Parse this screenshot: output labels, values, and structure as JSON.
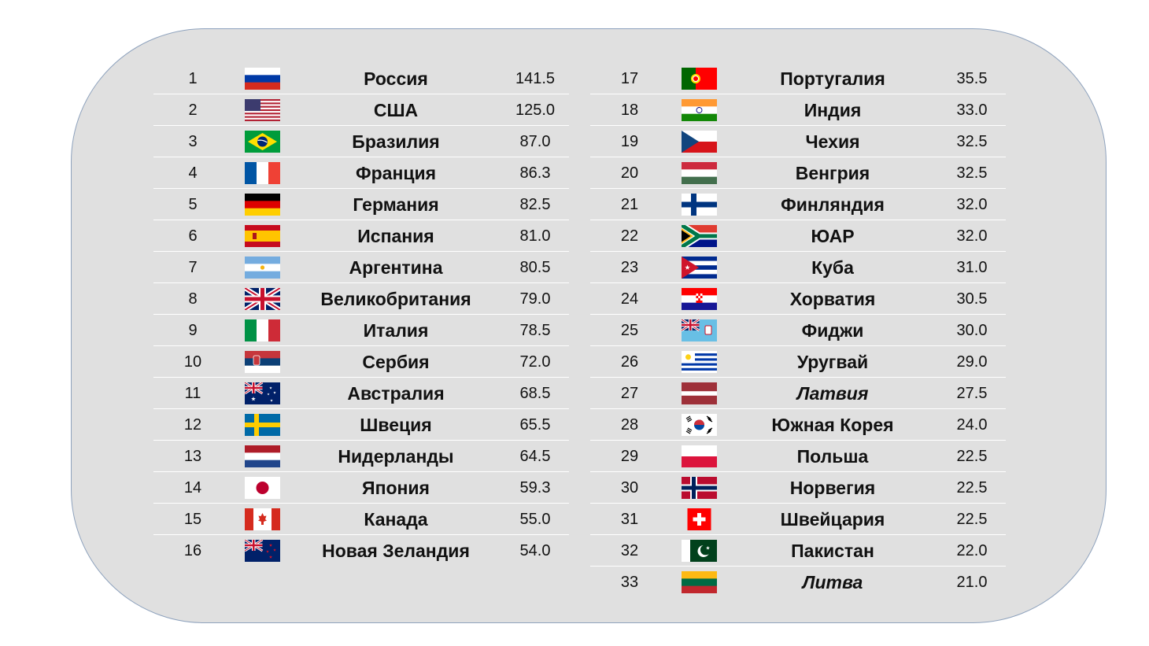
{
  "left": [
    {
      "rank": "1",
      "flag": "russia-flag",
      "name": "Россия",
      "value": "141.5"
    },
    {
      "rank": "2",
      "flag": "usa-flag",
      "name": "США",
      "value": "125.0"
    },
    {
      "rank": "3",
      "flag": "brazil-flag",
      "name": "Бразилия",
      "value": "87.0"
    },
    {
      "rank": "4",
      "flag": "france-flag",
      "name": "Франция",
      "value": "86.3"
    },
    {
      "rank": "5",
      "flag": "germany-flag",
      "name": "Германия",
      "value": "82.5"
    },
    {
      "rank": "6",
      "flag": "spain-flag",
      "name": "Испания",
      "value": "81.0"
    },
    {
      "rank": "7",
      "flag": "argentina-flag",
      "name": "Аргентина",
      "value": "80.5"
    },
    {
      "rank": "8",
      "flag": "uk-flag",
      "name": "Великобритания",
      "value": "79.0"
    },
    {
      "rank": "9",
      "flag": "italy-flag",
      "name": "Италия",
      "value": "78.5"
    },
    {
      "rank": "10",
      "flag": "serbia-flag",
      "name": "Сербия",
      "value": "72.0"
    },
    {
      "rank": "11",
      "flag": "australia-flag",
      "name": "Австралия",
      "value": "68.5"
    },
    {
      "rank": "12",
      "flag": "sweden-flag",
      "name": "Швеция",
      "value": "65.5"
    },
    {
      "rank": "13",
      "flag": "netherlands-flag",
      "name": "Нидерланды",
      "value": "64.5"
    },
    {
      "rank": "14",
      "flag": "japan-flag",
      "name": "Япония",
      "value": "59.3"
    },
    {
      "rank": "15",
      "flag": "canada-flag",
      "name": "Канада",
      "value": "55.0"
    },
    {
      "rank": "16",
      "flag": "new-zealand-flag",
      "name": "Новая Зеландия",
      "value": "54.0"
    }
  ],
  "right": [
    {
      "rank": "17",
      "flag": "portugal-flag",
      "name": "Португалия",
      "value": "35.5"
    },
    {
      "rank": "18",
      "flag": "india-flag",
      "name": "Индия",
      "value": "33.0"
    },
    {
      "rank": "19",
      "flag": "czechia-flag",
      "name": "Чехия",
      "value": "32.5"
    },
    {
      "rank": "20",
      "flag": "hungary-flag",
      "name": "Венгрия",
      "value": "32.5"
    },
    {
      "rank": "21",
      "flag": "finland-flag",
      "name": "Финляндия",
      "value": "32.0"
    },
    {
      "rank": "22",
      "flag": "south-africa-flag",
      "name": "ЮАР",
      "value": "32.0"
    },
    {
      "rank": "23",
      "flag": "cuba-flag",
      "name": "Куба",
      "value": "31.0"
    },
    {
      "rank": "24",
      "flag": "croatia-flag",
      "name": "Хорватия",
      "value": "30.5"
    },
    {
      "rank": "25",
      "flag": "fiji-flag",
      "name": "Фиджи",
      "value": "30.0"
    },
    {
      "rank": "26",
      "flag": "uruguay-flag",
      "name": "Уругвай",
      "value": "29.0"
    },
    {
      "rank": "27",
      "flag": "latvia-flag",
      "name": "Латвия",
      "value": "27.5",
      "italic": true
    },
    {
      "rank": "28",
      "flag": "south-korea-flag",
      "name": "Южная Корея",
      "value": "24.0"
    },
    {
      "rank": "29",
      "flag": "poland-flag",
      "name": "Польша",
      "value": "22.5"
    },
    {
      "rank": "30",
      "flag": "norway-flag",
      "name": "Норвегия",
      "value": "22.5"
    },
    {
      "rank": "31",
      "flag": "switzerland-flag",
      "name": "Швейцария",
      "value": "22.5"
    },
    {
      "rank": "32",
      "flag": "pakistan-flag",
      "name": "Пакистан",
      "value": "22.0"
    },
    {
      "rank": "33",
      "flag": "lithuania-flag",
      "name": "Литва",
      "value": "21.0",
      "italic": true
    }
  ]
}
